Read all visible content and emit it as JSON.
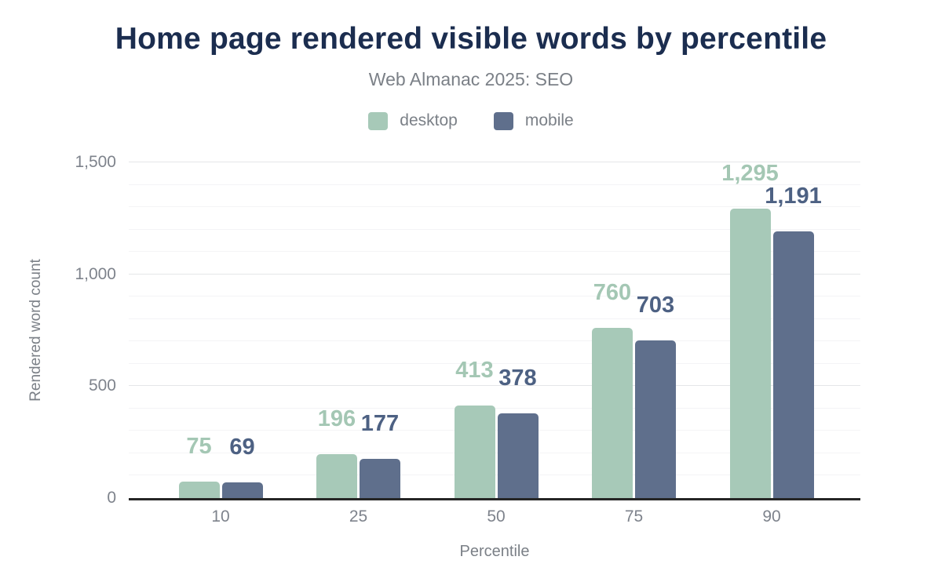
{
  "chart_data": {
    "type": "bar",
    "title": "Home page rendered visible words by percentile",
    "subtitle": "Web Almanac 2025: SEO",
    "categories": [
      "10",
      "25",
      "50",
      "75",
      "90"
    ],
    "series": [
      {
        "name": "desktop",
        "color": "#a7c9b8",
        "label_color": "#a4c7b4",
        "values": [
          75,
          196,
          413,
          760,
          1295
        ]
      },
      {
        "name": "mobile",
        "color": "#5f6f8c",
        "label_color": "#4d6183",
        "values": [
          69,
          177,
          378,
          703,
          1191
        ]
      }
    ],
    "xlabel": "Percentile",
    "ylabel": "Rendered word count",
    "ylim": [
      0,
      1500
    ],
    "yticks": [
      {
        "value": 0,
        "label": "0"
      },
      {
        "value": 500,
        "label": "500"
      },
      {
        "value": 1000,
        "label": "1,000"
      },
      {
        "value": 1500,
        "label": "1,500"
      }
    ],
    "minor_grid_step": 100,
    "major_grid_step": 500,
    "grid": true,
    "legend_position": "top"
  },
  "colors": {
    "background": "#ffffff",
    "title": "#1b2d4f",
    "text_gray": "#7b8087",
    "axis_line": "#262626",
    "grid_major": "#e5e6e8",
    "grid_minor": "#f4f4f6"
  }
}
